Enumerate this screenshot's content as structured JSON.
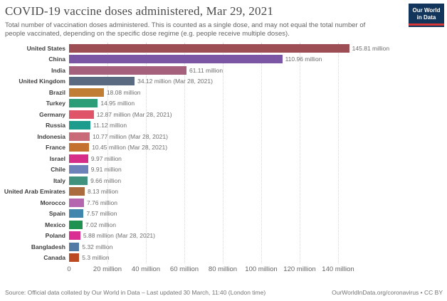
{
  "header": {
    "title": "COVID-19 vaccine doses administered, Mar 29, 2021",
    "subtitle": "Total number of vaccination doses administered. This is counted as a single dose, and may not equal the total number of people vaccinated, depending on the specific dose regime (e.g. people receive multiple doses).",
    "logo": {
      "line1": "Our World",
      "line2": "in Data",
      "bg_color": "#12355b",
      "stripe_color": "#d73737"
    }
  },
  "chart_data": {
    "type": "bar",
    "orientation": "horizontal",
    "title": "COVID-19 vaccine doses administered, Mar 29, 2021",
    "xlabel": "",
    "ylabel": "",
    "unit": "million doses",
    "xlim_millions": [
      0,
      160
    ],
    "x_tick_interval_millions": 20,
    "x_tick_labels": [
      "0",
      "20 million",
      "40 million",
      "60 million",
      "80 million",
      "100 million",
      "120 million",
      "140 million"
    ],
    "grid": "vertical-dotted",
    "legend": "none",
    "series": [
      {
        "country": "United States",
        "value_millions": 145.81,
        "label": "145.81 million",
        "color": "#9d4e55"
      },
      {
        "country": "China",
        "value_millions": 110.96,
        "label": "110.96 million",
        "color": "#7b56a5"
      },
      {
        "country": "India",
        "value_millions": 61.11,
        "label": "61.11 million",
        "color": "#a5607c"
      },
      {
        "country": "United Kingdom",
        "value_millions": 34.12,
        "label": "34.12 million (Mar 28, 2021)",
        "color": "#5a6a80"
      },
      {
        "country": "Brazil",
        "value_millions": 18.08,
        "label": "18.08 million",
        "color": "#c07d33"
      },
      {
        "country": "Turkey",
        "value_millions": 14.95,
        "label": "14.95 million",
        "color": "#2b9d77"
      },
      {
        "country": "Germany",
        "value_millions": 12.87,
        "label": "12.87 million (Mar 28, 2021)",
        "color": "#e0546a"
      },
      {
        "country": "Russia",
        "value_millions": 11.12,
        "label": "11.12 million",
        "color": "#1d9b8c"
      },
      {
        "country": "Indonesia",
        "value_millions": 10.77,
        "label": "10.77 million (Mar 28, 2021)",
        "color": "#c96a79"
      },
      {
        "country": "France",
        "value_millions": 10.45,
        "label": "10.45 million (Mar 28, 2021)",
        "color": "#c4702f"
      },
      {
        "country": "Israel",
        "value_millions": 9.97,
        "label": "9.97 million",
        "color": "#d62e88"
      },
      {
        "country": "Chile",
        "value_millions": 9.91,
        "label": "9.91 million",
        "color": "#6c82b8"
      },
      {
        "country": "Italy",
        "value_millions": 9.66,
        "label": "9.66 million",
        "color": "#41917f"
      },
      {
        "country": "United Arab Emirates",
        "value_millions": 8.13,
        "label": "8.13 million",
        "color": "#aa6b3f"
      },
      {
        "country": "Morocco",
        "value_millions": 7.76,
        "label": "7.76 million",
        "color": "#b467ae"
      },
      {
        "country": "Spain",
        "value_millions": 7.57,
        "label": "7.57 million",
        "color": "#4186ad"
      },
      {
        "country": "Mexico",
        "value_millions": 7.02,
        "label": "7.02 million",
        "color": "#1f9150"
      },
      {
        "country": "Poland",
        "value_millions": 5.88,
        "label": "5.88 million (Mar 28, 2021)",
        "color": "#da2f92"
      },
      {
        "country": "Bangladesh",
        "value_millions": 5.32,
        "label": "5.32 million",
        "color": "#5379a5"
      },
      {
        "country": "Canada",
        "value_millions": 5.3,
        "label": "5.3 million",
        "color": "#bb4a22"
      }
    ]
  },
  "footer": {
    "source": "Source: Official data collated by Our World in Data – Last updated 30 March, 11:40 (London time)",
    "link": "OurWorldInData.org/coronavirus",
    "license": " • CC BY"
  }
}
